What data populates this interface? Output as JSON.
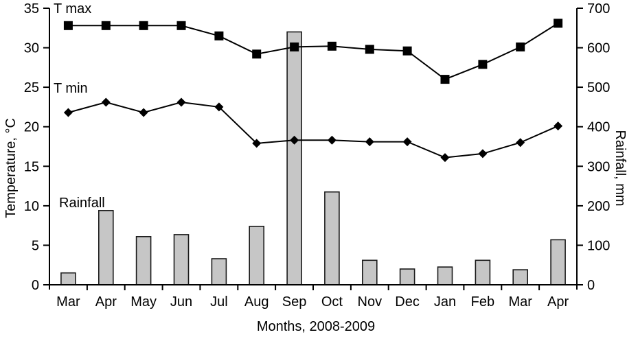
{
  "chart_data": {
    "type": "bar+line",
    "title": "",
    "xlabel": "Months, 2008-2009",
    "categories": [
      "Mar",
      "Apr",
      "May",
      "Jun",
      "Jul",
      "Aug",
      "Sep",
      "Oct",
      "Nov",
      "Dec",
      "Jan",
      "Feb",
      "Mar",
      "Apr"
    ],
    "series": [
      {
        "name": "T max",
        "type": "line",
        "axis": "left",
        "marker": "square",
        "values": [
          32.8,
          32.8,
          32.8,
          32.8,
          31.5,
          29.2,
          30.1,
          30.2,
          29.8,
          29.6,
          26.0,
          27.9,
          30.1,
          33.1
        ]
      },
      {
        "name": "T min",
        "type": "line",
        "axis": "left",
        "marker": "diamond",
        "values": [
          21.8,
          23.1,
          21.8,
          23.1,
          22.5,
          17.9,
          18.3,
          18.3,
          18.1,
          18.1,
          16.1,
          16.6,
          18.0,
          20.1
        ]
      },
      {
        "name": "Rainfall",
        "type": "bar",
        "axis": "right",
        "values": [
          30,
          188,
          122,
          127,
          66,
          148,
          640,
          235,
          62,
          40,
          45,
          62,
          38,
          114
        ]
      }
    ],
    "y_left": {
      "label": "Temperature,  °C",
      "min": 0,
      "max": 35,
      "ticks": [
        0,
        5,
        10,
        15,
        20,
        25,
        30,
        35
      ]
    },
    "y_right": {
      "label": "Rainfall, mm",
      "min": 0,
      "max": 700,
      "ticks": [
        0,
        100,
        200,
        300,
        400,
        500,
        600,
        700
      ]
    },
    "annotations": [
      {
        "text": "T max",
        "x": 78,
        "y": 19
      },
      {
        "text": "T min",
        "x": 78,
        "y": 135
      },
      {
        "text": "Rainfall",
        "x": 86,
        "y": 302
      }
    ],
    "legend_position": "in-plot-left",
    "grid": false,
    "colors": {
      "line": "#000000",
      "marker": "#000000",
      "bar_fill": "#c6c6c6",
      "bar_stroke": "#1a1a1a",
      "axis": "#000000"
    }
  }
}
